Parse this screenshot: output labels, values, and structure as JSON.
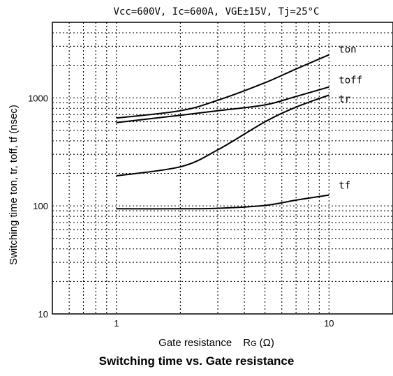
{
  "chart_data": {
    "type": "line",
    "title": "Vcc=600V, Ic=600A, VGE±15V, Tj=25°C",
    "xlabel_main": "Gate resistance",
    "xlabel_symbol": "R",
    "xlabel_subscript": "G",
    "xlabel_unit": "(Ω)",
    "ylabel": "Switching time   ton, tr, toff, tf (nsec)",
    "xscale": "log",
    "yscale": "log",
    "xlim": [
      0.5,
      20
    ],
    "ylim": [
      10,
      5000
    ],
    "xticks": [
      {
        "value": 1,
        "label": "1"
      },
      {
        "value": 10,
        "label": "10"
      }
    ],
    "yticks": [
      {
        "value": 10,
        "label": "10"
      },
      {
        "value": 100,
        "label": "100"
      },
      {
        "value": 1000,
        "label": "1000"
      }
    ],
    "grid": true,
    "series": [
      {
        "name": "ton",
        "x": [
          1,
          2,
          3,
          5,
          7,
          10
        ],
        "y": [
          650,
          760,
          950,
          1380,
          1850,
          2500
        ]
      },
      {
        "name": "toff",
        "x": [
          1,
          2,
          3,
          5,
          7,
          10
        ],
        "y": [
          590,
          690,
          760,
          860,
          1030,
          1260
        ]
      },
      {
        "name": "tr",
        "x": [
          1,
          2,
          3,
          5,
          7,
          10
        ],
        "y": [
          190,
          230,
          330,
          600,
          820,
          1060
        ]
      },
      {
        "name": "tf",
        "x": [
          1,
          2,
          3,
          5,
          7,
          10
        ],
        "y": [
          94,
          94,
          95,
          101,
          113,
          126
        ]
      }
    ]
  },
  "caption": "Switching time vs. Gate resistance"
}
